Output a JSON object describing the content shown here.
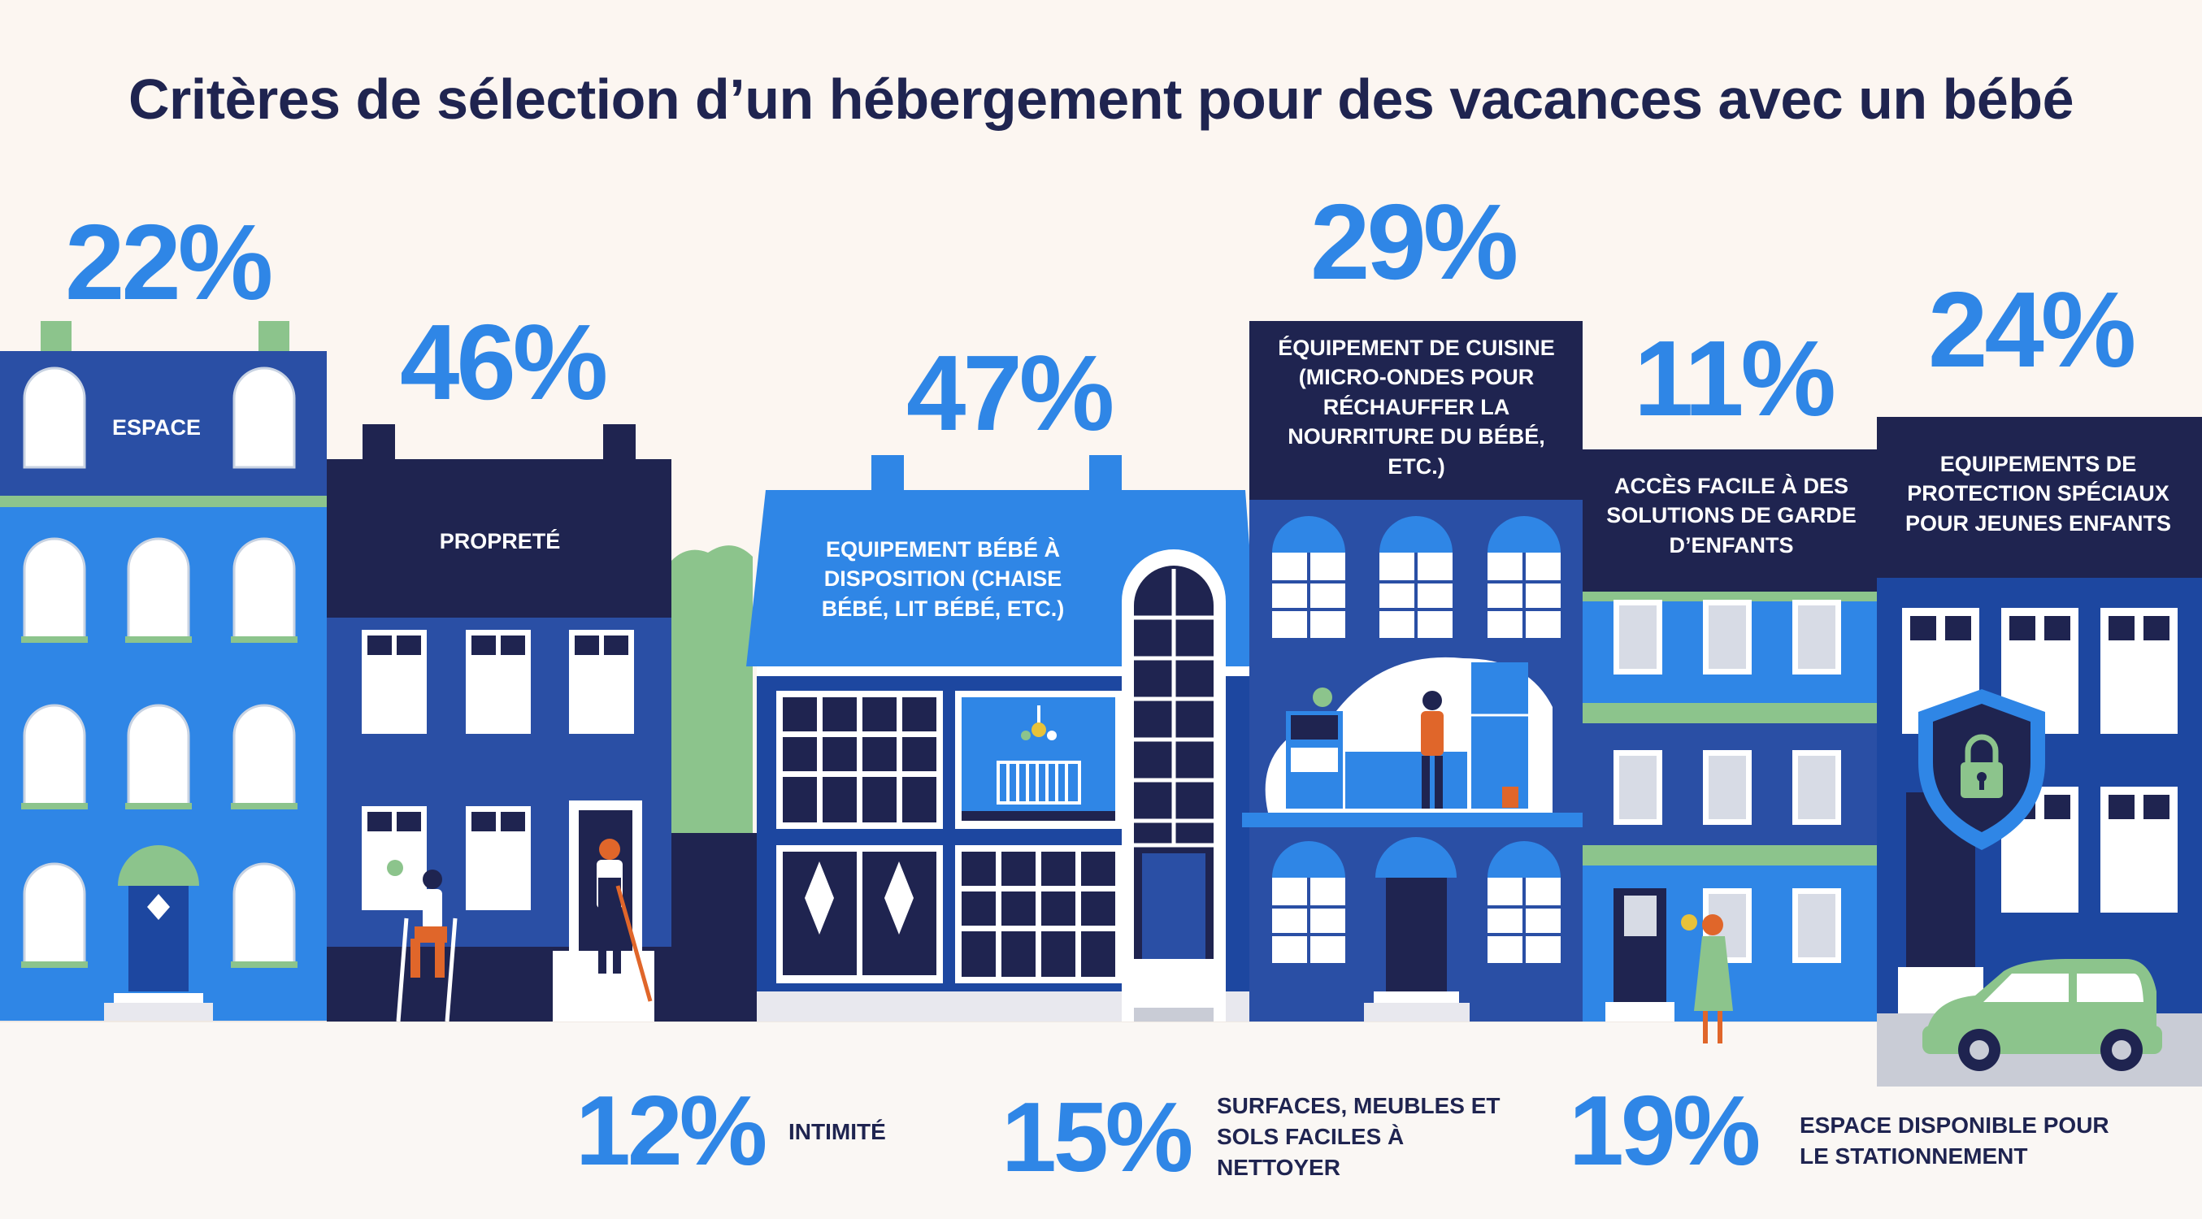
{
  "title": "Critères de sélection d’un hébergement pour des vacances avec un bébé",
  "colors": {
    "background": "#fcf6f1",
    "title": "#1f2450",
    "percent": "#2f86e6",
    "navy": "#1f2450",
    "blue": "#2f86e6",
    "royal": "#2a4fa5",
    "green": "#8cc48c"
  },
  "criteria": [
    {
      "percent": "22%",
      "label": "ESPACE"
    },
    {
      "percent": "46%",
      "label": "PROPRETÉ"
    },
    {
      "percent": "47%",
      "label": "EQUIPEMENT BÉBÉ À DISPOSITION (CHAISE BÉBÉ, LIT BÉBÉ, ETC.)"
    },
    {
      "percent": "29%",
      "label": "ÉQUIPEMENT DE CUISINE (MICRO-ONDES POUR RÉCHAUFFER LA NOURRITURE DU BÉBÉ, ETC.)"
    },
    {
      "percent": "11%",
      "label": "ACCÈS FACILE À DES SOLUTIONS DE GARDE D’ENFANTS"
    },
    {
      "percent": "24%",
      "label": "EQUIPEMENTS DE PROTECTION SPÉCIAUX POUR JEUNES ENFANTS"
    }
  ],
  "bottom_criteria": [
    {
      "percent": "12%",
      "label": "INTIMITÉ"
    },
    {
      "percent": "15%",
      "label": "SURFACES, MEUBLES ET SOLS FACILES À NETTOYER"
    },
    {
      "percent": "19%",
      "label": "ESPACE DISPONIBLE POUR LE STATIONNEMENT"
    }
  ],
  "icons": [
    "lock-shield-icon",
    "car-icon",
    "baby-crib-icon",
    "window-cleaner-figure",
    "sweeper-figure",
    "cook-figure",
    "mother-figure"
  ]
}
